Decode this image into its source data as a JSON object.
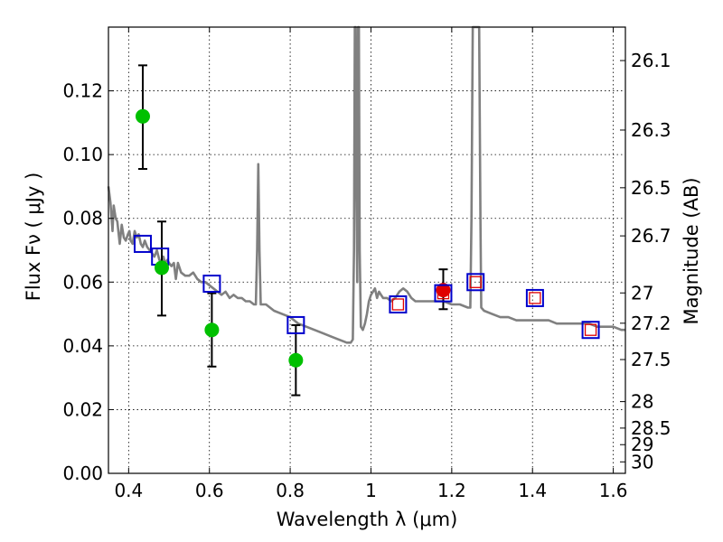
{
  "chart_data": {
    "type": "scatter",
    "title": "",
    "xlabel": "Wavelength  λ (μm)",
    "ylabel": "Flux  Fν  ( μJy )",
    "y2label": "Magnitude (AB)",
    "xlim": [
      0.35,
      1.63
    ],
    "ylim": [
      0.0,
      0.14
    ],
    "grid": true,
    "x_ticks": [
      0.4,
      0.6,
      0.8,
      1.0,
      1.2,
      1.4,
      1.6
    ],
    "x_tick_labels": [
      "0.4",
      "0.6",
      "0.8",
      "1",
      "1.2",
      "1.4",
      "1.6"
    ],
    "y_ticks": [
      0.0,
      0.02,
      0.04,
      0.06,
      0.08,
      0.1,
      0.12
    ],
    "y_tick_labels": [
      "0.00",
      "0.02",
      "0.04",
      "0.06",
      "0.08",
      "0.10",
      "0.12"
    ],
    "y2_ticks": [
      {
        "label": "26.1",
        "flux": 0.1295
      },
      {
        "label": "26.3",
        "flux": 0.1077
      },
      {
        "label": "26.5",
        "flux": 0.0896
      },
      {
        "label": "26.7",
        "flux": 0.0745
      },
      {
        "label": "27",
        "flux": 0.0566
      },
      {
        "label": "27.2",
        "flux": 0.0471
      },
      {
        "label": "27.5",
        "flux": 0.0357
      },
      {
        "label": "28",
        "flux": 0.0225
      },
      {
        "label": "28.5",
        "flux": 0.0142
      },
      {
        "label": "29",
        "flux": 0.009
      },
      {
        "label": "30",
        "flux": 0.0036
      }
    ],
    "colors": {
      "template": "#808080",
      "observed_optical": "#00c000",
      "observed_nir": "#e00000",
      "model": "#0000cc",
      "model_inner": "#e00000",
      "errorbar": "#000000"
    },
    "series": [
      {
        "name": "template_spectrum",
        "type": "line",
        "points": [
          [
            0.35,
            0.09
          ],
          [
            0.355,
            0.085
          ],
          [
            0.36,
            0.076
          ],
          [
            0.363,
            0.084
          ],
          [
            0.368,
            0.08
          ],
          [
            0.372,
            0.079
          ],
          [
            0.378,
            0.072
          ],
          [
            0.383,
            0.078
          ],
          [
            0.388,
            0.074
          ],
          [
            0.393,
            0.073
          ],
          [
            0.398,
            0.075
          ],
          [
            0.402,
            0.076
          ],
          [
            0.405,
            0.073
          ],
          [
            0.41,
            0.072
          ],
          [
            0.415,
            0.076
          ],
          [
            0.42,
            0.074
          ],
          [
            0.425,
            0.075
          ],
          [
            0.43,
            0.072
          ],
          [
            0.435,
            0.071
          ],
          [
            0.44,
            0.073
          ],
          [
            0.446,
            0.071
          ],
          [
            0.452,
            0.07
          ],
          [
            0.458,
            0.069
          ],
          [
            0.464,
            0.068
          ],
          [
            0.47,
            0.07
          ],
          [
            0.476,
            0.067
          ],
          [
            0.482,
            0.066
          ],
          [
            0.486,
            0.068
          ],
          [
            0.49,
            0.066
          ],
          [
            0.496,
            0.067
          ],
          [
            0.5,
            0.066
          ],
          [
            0.506,
            0.065
          ],
          [
            0.512,
            0.066
          ],
          [
            0.517,
            0.061
          ],
          [
            0.522,
            0.066
          ],
          [
            0.53,
            0.063
          ],
          [
            0.54,
            0.062
          ],
          [
            0.55,
            0.062
          ],
          [
            0.56,
            0.063
          ],
          [
            0.57,
            0.061
          ],
          [
            0.58,
            0.06
          ],
          [
            0.59,
            0.06
          ],
          [
            0.6,
            0.059
          ],
          [
            0.61,
            0.058
          ],
          [
            0.62,
            0.057
          ],
          [
            0.63,
            0.056
          ],
          [
            0.64,
            0.057
          ],
          [
            0.65,
            0.055
          ],
          [
            0.66,
            0.056
          ],
          [
            0.67,
            0.055
          ],
          [
            0.68,
            0.055
          ],
          [
            0.69,
            0.054
          ],
          [
            0.7,
            0.054
          ],
          [
            0.71,
            0.053
          ],
          [
            0.715,
            0.053
          ],
          [
            0.718,
            0.07
          ],
          [
            0.721,
            0.097
          ],
          [
            0.724,
            0.07
          ],
          [
            0.727,
            0.053
          ],
          [
            0.74,
            0.053
          ],
          [
            0.76,
            0.051
          ],
          [
            0.78,
            0.05
          ],
          [
            0.8,
            0.049
          ],
          [
            0.82,
            0.047
          ],
          [
            0.84,
            0.046
          ],
          [
            0.86,
            0.045
          ],
          [
            0.88,
            0.044
          ],
          [
            0.9,
            0.043
          ],
          [
            0.92,
            0.042
          ],
          [
            0.94,
            0.041
          ],
          [
            0.95,
            0.041
          ],
          [
            0.955,
            0.042
          ],
          [
            0.958,
            0.07
          ],
          [
            0.96,
            0.14
          ],
          [
            0.962,
            0.14
          ],
          [
            0.964,
            0.09
          ],
          [
            0.966,
            0.06
          ],
          [
            0.968,
            0.14
          ],
          [
            0.97,
            0.14
          ],
          [
            0.972,
            0.07
          ],
          [
            0.975,
            0.046
          ],
          [
            0.98,
            0.045
          ],
          [
            0.985,
            0.047
          ],
          [
            0.99,
            0.05
          ],
          [
            0.995,
            0.054
          ],
          [
            1.0,
            0.056
          ],
          [
            1.005,
            0.057
          ],
          [
            1.01,
            0.058
          ],
          [
            1.015,
            0.055
          ],
          [
            1.02,
            0.057
          ],
          [
            1.025,
            0.056
          ],
          [
            1.03,
            0.055
          ],
          [
            1.04,
            0.055
          ],
          [
            1.05,
            0.054
          ],
          [
            1.06,
            0.055
          ],
          [
            1.07,
            0.057
          ],
          [
            1.08,
            0.058
          ],
          [
            1.09,
            0.057
          ],
          [
            1.1,
            0.055
          ],
          [
            1.11,
            0.054
          ],
          [
            1.12,
            0.054
          ],
          [
            1.14,
            0.054
          ],
          [
            1.16,
            0.054
          ],
          [
            1.18,
            0.054
          ],
          [
            1.2,
            0.053
          ],
          [
            1.22,
            0.053
          ],
          [
            1.24,
            0.052
          ],
          [
            1.246,
            0.052
          ],
          [
            1.249,
            0.08
          ],
          [
            1.252,
            0.14
          ],
          [
            1.268,
            0.14
          ],
          [
            1.271,
            0.08
          ],
          [
            1.273,
            0.052
          ],
          [
            1.28,
            0.051
          ],
          [
            1.3,
            0.05
          ],
          [
            1.32,
            0.049
          ],
          [
            1.34,
            0.049
          ],
          [
            1.36,
            0.048
          ],
          [
            1.38,
            0.048
          ],
          [
            1.4,
            0.048
          ],
          [
            1.42,
            0.048
          ],
          [
            1.44,
            0.048
          ],
          [
            1.46,
            0.047
          ],
          [
            1.48,
            0.047
          ],
          [
            1.5,
            0.047
          ],
          [
            1.52,
            0.047
          ],
          [
            1.54,
            0.047
          ],
          [
            1.56,
            0.046
          ],
          [
            1.58,
            0.046
          ],
          [
            1.6,
            0.046
          ],
          [
            1.62,
            0.045
          ],
          [
            1.63,
            0.045
          ]
        ]
      },
      {
        "name": "observed_optical",
        "type": "scatter",
        "points": [
          {
            "x": 0.435,
            "y": 0.112,
            "ylo": 0.0955,
            "yhi": 0.128
          },
          {
            "x": 0.482,
            "y": 0.0645,
            "ylo": 0.0495,
            "yhi": 0.079
          },
          {
            "x": 0.606,
            "y": 0.045,
            "ylo": 0.0335,
            "yhi": 0.0565
          },
          {
            "x": 0.814,
            "y": 0.0355,
            "ylo": 0.0245,
            "yhi": 0.0465
          }
        ]
      },
      {
        "name": "observed_nir",
        "type": "scatter",
        "points": [
          {
            "x": 1.179,
            "y": 0.0575,
            "ylo": 0.0515,
            "yhi": 0.064
          }
        ]
      },
      {
        "name": "model_optical",
        "type": "scatter",
        "points": [
          {
            "x": 0.435,
            "y": 0.072
          },
          {
            "x": 0.478,
            "y": 0.068
          },
          {
            "x": 0.606,
            "y": 0.0595
          },
          {
            "x": 0.814,
            "y": 0.0465
          }
        ]
      },
      {
        "name": "model_nir",
        "type": "scatter",
        "points": [
          {
            "x": 1.067,
            "y": 0.053
          },
          {
            "x": 1.179,
            "y": 0.0565
          },
          {
            "x": 1.259,
            "y": 0.06
          },
          {
            "x": 1.406,
            "y": 0.055
          },
          {
            "x": 1.544,
            "y": 0.045
          }
        ]
      }
    ]
  }
}
